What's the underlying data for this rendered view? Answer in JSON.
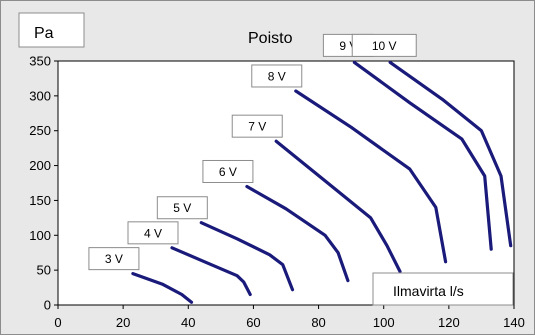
{
  "chart_data": {
    "type": "line",
    "title": "Poisto",
    "ylabel": "Pa",
    "xlabel": "Ilmavirta l/s",
    "xlim": [
      0,
      140
    ],
    "ylim": [
      0,
      350
    ],
    "x_ticks": [
      0,
      20,
      40,
      60,
      80,
      100,
      120,
      140
    ],
    "y_ticks": [
      0,
      50,
      100,
      150,
      200,
      250,
      300,
      350
    ],
    "grid": false,
    "line_color": "#1a1a7a",
    "series": [
      {
        "name": "3 V",
        "points": [
          [
            23,
            45
          ],
          [
            32,
            30
          ],
          [
            38,
            15
          ],
          [
            41,
            4
          ]
        ]
      },
      {
        "name": "4 V",
        "points": [
          [
            35,
            82
          ],
          [
            45,
            62
          ],
          [
            55,
            42
          ],
          [
            57,
            33
          ],
          [
            59,
            15
          ]
        ]
      },
      {
        "name": "5 V",
        "points": [
          [
            44,
            118
          ],
          [
            55,
            95
          ],
          [
            65,
            72
          ],
          [
            69,
            58
          ],
          [
            72,
            22
          ]
        ]
      },
      {
        "name": "6 V",
        "points": [
          [
            58,
            170
          ],
          [
            70,
            138
          ],
          [
            82,
            100
          ],
          [
            86,
            75
          ],
          [
            89,
            35
          ]
        ]
      },
      {
        "name": "7 V",
        "points": [
          [
            67,
            235
          ],
          [
            82,
            178
          ],
          [
            96,
            125
          ],
          [
            101,
            85
          ],
          [
            105,
            48
          ]
        ]
      },
      {
        "name": "8 V",
        "points": [
          [
            73,
            307
          ],
          [
            90,
            255
          ],
          [
            108,
            195
          ],
          [
            116,
            140
          ],
          [
            119,
            62
          ]
        ]
      },
      {
        "name": "9 V",
        "points": [
          [
            91,
            348
          ],
          [
            108,
            290
          ],
          [
            124,
            238
          ],
          [
            131,
            185
          ],
          [
            133,
            80
          ]
        ]
      },
      {
        "name": "10 V",
        "points": [
          [
            102,
            348
          ],
          [
            118,
            295
          ],
          [
            130,
            250
          ],
          [
            136,
            185
          ],
          [
            139,
            85
          ]
        ]
      }
    ]
  }
}
